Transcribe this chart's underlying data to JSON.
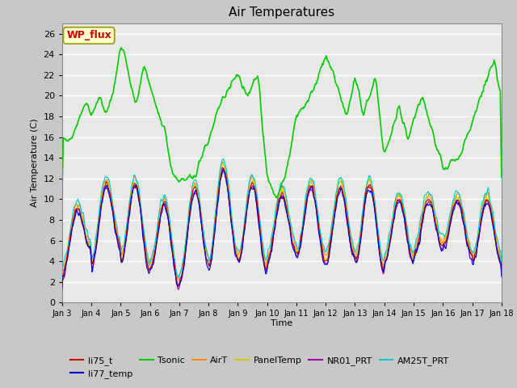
{
  "title": "Air Temperatures",
  "xlabel": "Time",
  "ylabel": "Air Temperature (C)",
  "ylim": [
    0,
    27
  ],
  "yticks": [
    0,
    2,
    4,
    6,
    8,
    10,
    12,
    14,
    16,
    18,
    20,
    22,
    24,
    26
  ],
  "xtick_labels": [
    "Jan 3",
    "Jan 4",
    "Jan 5",
    "Jan 6",
    "Jan 7",
    "Jan 8",
    "Jan 9",
    "Jan 10",
    "Jan 11",
    "Jan 12",
    "Jan 13",
    "Jan 14",
    "Jan 15",
    "Jan 16",
    "Jan 17",
    "Jan 18"
  ],
  "fig_bg": "#c8c8c8",
  "plot_bg": "#e8e8e8",
  "grid_color": "#ffffff",
  "series": [
    {
      "label": "li75_t",
      "color": "#cc0000",
      "lw": 0.8,
      "zorder": 4
    },
    {
      "label": "li77_temp",
      "color": "#0000cc",
      "lw": 0.8,
      "zorder": 4
    },
    {
      "label": "Tsonic",
      "color": "#00cc00",
      "lw": 1.2,
      "zorder": 5
    },
    {
      "label": "AirT",
      "color": "#ff8800",
      "lw": 0.8,
      "zorder": 3
    },
    {
      "label": "PanelTemp",
      "color": "#cccc00",
      "lw": 0.8,
      "zorder": 3
    },
    {
      "label": "NR01_PRT",
      "color": "#aa00aa",
      "lw": 0.8,
      "zorder": 3
    },
    {
      "label": "AM25T_PRT",
      "color": "#00cccc",
      "lw": 0.8,
      "zorder": 3
    }
  ],
  "annotation_text": "WP_flux",
  "annotation_color": "#cc0000",
  "annotation_bg": "#ffffcc",
  "annotation_border": "#999900",
  "legend_ncol": 6,
  "legend_fontsize": 8
}
